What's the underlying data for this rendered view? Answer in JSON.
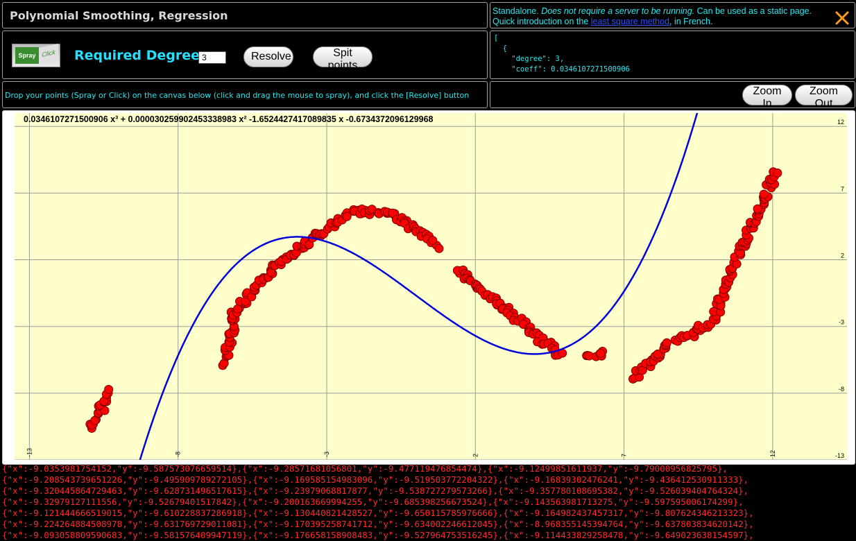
{
  "header": {
    "title": "Polynomial Smoothing, Regression"
  },
  "info": {
    "line1_prefix": "Standalone. ",
    "line1_italic": "Does not require a server to be running.",
    "line1_suffix": " Can be used as a static page.",
    "line2_prefix": "Quick introduction on the ",
    "line2_link": "least square method",
    "line2_suffix": ", in French."
  },
  "controls": {
    "logo_spray": "Spray",
    "logo_click": "Click",
    "degree_label": "Required Degree :",
    "degree_value": "3",
    "resolve_label": "Resolve",
    "spit_label": "Spit points"
  },
  "json_output": "[\n  {\n    \"degree\": 3,\n    \"coeff\": 0.0346107271500906\n  ",
  "instructions": "Drop your points (Spray or Click) on the canvas below (click and drag the mouse to spray), and click the [Resolve] button",
  "zoom": {
    "in_label": "Zoom In",
    "out_label": "Zoom Out"
  },
  "equation": "0.0346107271500906 x³ + 0.000030259902453338983 x² -1.6524427417089835 x -0.6734372096129968",
  "colors": {
    "accent": "#28e8f0",
    "curve": "#0000dd",
    "points": "#ff0000",
    "plot_bg": "#ffffcc",
    "data_text": "#ff2a2a"
  },
  "chart_data": {
    "type": "scatter",
    "xlim": [
      -13.5,
      14.5
    ],
    "ylim": [
      -13,
      13
    ],
    "x_ticks": [
      -13,
      -8,
      -3,
      2,
      7,
      12
    ],
    "y_ticks": [
      12,
      7,
      2,
      -3,
      -8,
      -13
    ],
    "coefficients": [
      0.0346107271500906,
      3.0259902453338983e-05,
      -1.6524427417089835,
      -0.6734372096129968
    ],
    "point_segments": [
      {
        "x0": -10.9,
        "y0": -10.6,
        "x1": -10.3,
        "y1": -7.8
      },
      {
        "x0": -6.4,
        "y0": -5.7,
        "x1": -6.1,
        "y1": -2.0
      },
      {
        "x0": -6.1,
        "y0": -2.0,
        "x1": -4.4,
        "y1": 2.2
      },
      {
        "x0": -4.4,
        "y0": 2.2,
        "x1": -2.0,
        "y1": 5.7
      },
      {
        "x0": -2.0,
        "y0": 5.7,
        "x1": -0.8,
        "y1": 5.5
      },
      {
        "x0": -0.8,
        "y0": 5.5,
        "x1": 0.7,
        "y1": 3.1
      },
      {
        "x0": 1.4,
        "y0": 1.3,
        "x1": 4.9,
        "y1": -5.2
      },
      {
        "x0": 5.8,
        "y0": -5.2,
        "x1": 6.3,
        "y1": -5.1
      },
      {
        "x0": 7.3,
        "y0": -6.8,
        "x1": 8.5,
        "y1": -4.4
      },
      {
        "x0": 8.8,
        "y0": -4.2,
        "x1": 9.9,
        "y1": -2.7
      },
      {
        "x0": 10.0,
        "y0": -2.4,
        "x1": 10.7,
        "y1": 1.4
      },
      {
        "x0": 10.7,
        "y0": 1.6,
        "x1": 12.1,
        "y1": 8.5
      }
    ]
  },
  "data_lines": [
    "{\"x\":-9.0353981754152,\"y\":-9.587573076659514},{\"x\":-9.28571681056801,\"y\":-9.477119476854474},{\"x\":-9.12499851611937,\"y\":-9.79000956825795},",
    "{\"x\":-9.208543739651226,\"y\":-9.495909789272105},{\"x\":-9.169585154983096,\"y\":-9.519503772204322},{\"x\":-9.16839302476241,\"y\":-9.436412530911333},",
    "{\"x\":-9.320445864729463,\"y\":-9.628731496517615},{\"x\":-9.23979068817877,\"y\":-9.538727279573266},{\"x\":-9.357780108695382,\"y\":-9.526039404764324},",
    "{\"x\":-9.32979127111556,\"y\":-9.52679401517842},{\"x\":-9.200163669994255,\"y\":-9.685398256673524},{\"x\":-9.143563981713275,\"y\":-9.597595006174299},",
    "{\"x\":-9.121444666519015,\"y\":-9.610228837286918},{\"x\":-9.130440821428527,\"y\":-9.650115785976666},{\"x\":-9.164982437457317,\"y\":-9.807624346213323},",
    "{\"x\":-9.224264884508978,\"y\":-9.631769729011081},{\"x\":-9.170395258741712,\"y\":-9.634002246612045},{\"x\":-8.968355145394764,\"y\":-9.637803834620142},",
    "{\"x\":-9.093058809590683,\"y\":-9.581576409947119},{\"x\":-9.176658158908483,\"y\":-9.527964753516245},{\"x\":-9.114433829258478,\"y\":-9.649023638154597},"
  ]
}
